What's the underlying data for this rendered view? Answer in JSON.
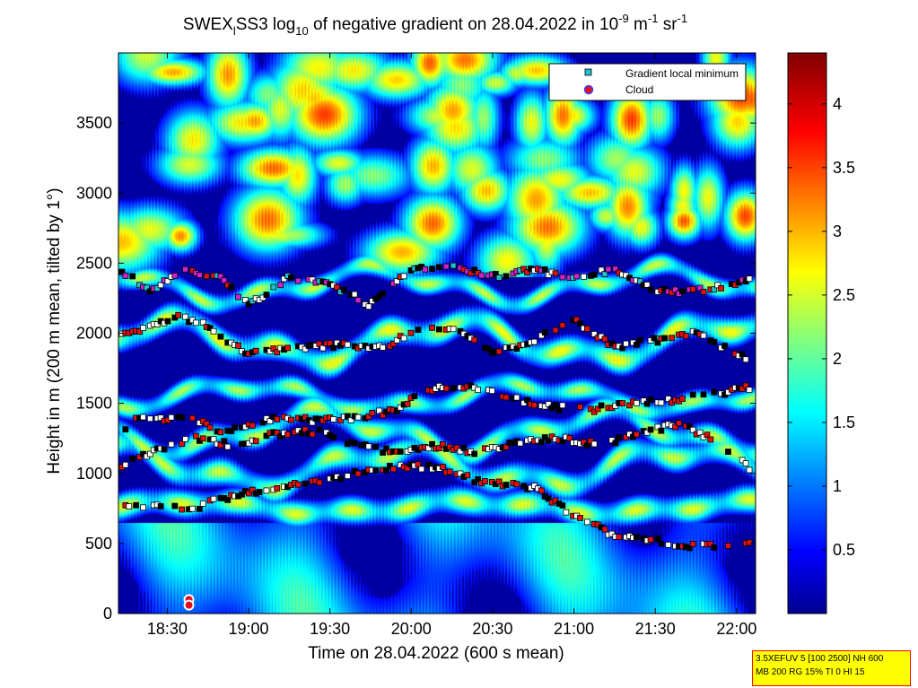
{
  "chart_data": {
    "type": "heatmap",
    "title": {
      "prefix": "SWEX",
      "prefix_sub": "l",
      "main": "SS3 log",
      "log_sub": "10",
      "rest": " of negative gradient on 28.04.2022 in 10",
      "exp1": "-9",
      "unit1": " m",
      "exp2": "-1",
      "unit2": " sr",
      "exp3": "-1"
    },
    "xlabel": "Time on 28.04.2022 (600 s mean)",
    "ylabel": "Height in m (200 m mean, tilted by 1°)",
    "x_tick_labels": [
      "18:30",
      "19:00",
      "19:30",
      "20:00",
      "20:30",
      "21:00",
      "21:30",
      "22:00"
    ],
    "x_tick_minutes": [
      1110,
      1140,
      1170,
      1200,
      1230,
      1260,
      1290,
      1320
    ],
    "xlim_minutes": [
      1092,
      1327
    ],
    "y_ticks": [
      0,
      500,
      1000,
      1500,
      2000,
      2500,
      3000,
      3500
    ],
    "ylim": [
      0,
      4000
    ],
    "colorbar": {
      "ticks": [
        0.5,
        1,
        1.5,
        2,
        2.5,
        3,
        3.5,
        4
      ],
      "range": [
        0,
        4.4
      ],
      "colormap": "jet"
    },
    "legend": {
      "placement": "top-right",
      "entries": [
        {
          "label": "Gradient local minimum",
          "marker": "square",
          "color": "#20c0d0"
        },
        {
          "label": "Cloud",
          "marker": "circle",
          "color": "#e0101a",
          "edge": "#4040ff"
        }
      ]
    },
    "layers": [
      {
        "height": 760,
        "amp": 40,
        "strength": 2.4,
        "width": 90
      },
      {
        "height": 1050,
        "amp": 120,
        "strength": 2.3,
        "width": 90
      },
      {
        "height": 1300,
        "amp": 120,
        "strength": 2.3,
        "width": 80
      },
      {
        "height": 1550,
        "amp": 80,
        "strength": 2.2,
        "width": 70
      },
      {
        "height": 1950,
        "amp": 120,
        "strength": 2.5,
        "width": 90
      },
      {
        "height": 2350,
        "amp": 100,
        "strength": 2.3,
        "width": 70
      }
    ],
    "minimum_tracks": [
      {
        "t": [
          1092,
          1105,
          1120,
          1130,
          1150,
          1165,
          1180,
          1195,
          1210,
          1225,
          1245,
          1260,
          1275,
          1290,
          1305,
          1320,
          1327
        ],
        "h": [
          780,
          760,
          750,
          820,
          900,
          950,
          1000,
          1050,
          1040,
          940,
          900,
          700,
          560,
          520,
          480,
          500,
          510
        ]
      },
      {
        "t": [
          1092,
          1105,
          1120,
          1135,
          1150,
          1165,
          1180,
          1195,
          1210,
          1225,
          1240,
          1255,
          1270,
          1285,
          1300,
          1315,
          1327
        ],
        "h": [
          1050,
          1150,
          1250,
          1200,
          1280,
          1300,
          1200,
          1150,
          1200,
          1150,
          1220,
          1250,
          1200,
          1300,
          1350,
          1200,
          1000
        ]
      },
      {
        "t": [
          1092,
          1100,
          1120,
          1130,
          1150,
          1165,
          1180,
          1195,
          1205,
          1220,
          1235,
          1250,
          1265,
          1280,
          1295,
          1310,
          1327
        ],
        "h": [
          1300,
          1400,
          1380,
          1300,
          1400,
          1380,
          1400,
          1450,
          1600,
          1620,
          1550,
          1480,
          1450,
          1500,
          1520,
          1560,
          1620
        ]
      },
      {
        "t": [
          1092,
          1105,
          1115,
          1125,
          1140,
          1160,
          1175,
          1190,
          1200,
          1215,
          1230,
          1245,
          1260,
          1275,
          1290,
          1305,
          1320,
          1327
        ],
        "h": [
          2000,
          2050,
          2120,
          2050,
          1850,
          1900,
          1920,
          1900,
          2000,
          2050,
          1850,
          1950,
          2100,
          1900,
          1950,
          2000,
          1850,
          1800
        ]
      },
      {
        "t": [
          1092,
          1105,
          1115,
          1130,
          1140,
          1155,
          1170,
          1185,
          1200,
          1215,
          1230,
          1245,
          1260,
          1275,
          1290,
          1305,
          1320,
          1327
        ],
        "h": [
          2450,
          2300,
          2450,
          2400,
          2200,
          2400,
          2350,
          2200,
          2450,
          2480,
          2400,
          2450,
          2400,
          2450,
          2300,
          2300,
          2350,
          2400
        ]
      }
    ],
    "cloud_points": [
      {
        "t": 1118,
        "h": 100
      },
      {
        "t": 1118,
        "h": 60
      }
    ]
  },
  "settings_box": {
    "line1": "3.5XEFUV 5 [100 2500] NH 600",
    "line2": "MB 200 RG 15% TI 0 HI 15"
  },
  "colors": {
    "low": "#00008f",
    "background": "#ffffff",
    "settings_bg": "#ffff00",
    "settings_border": "#ff0000"
  }
}
